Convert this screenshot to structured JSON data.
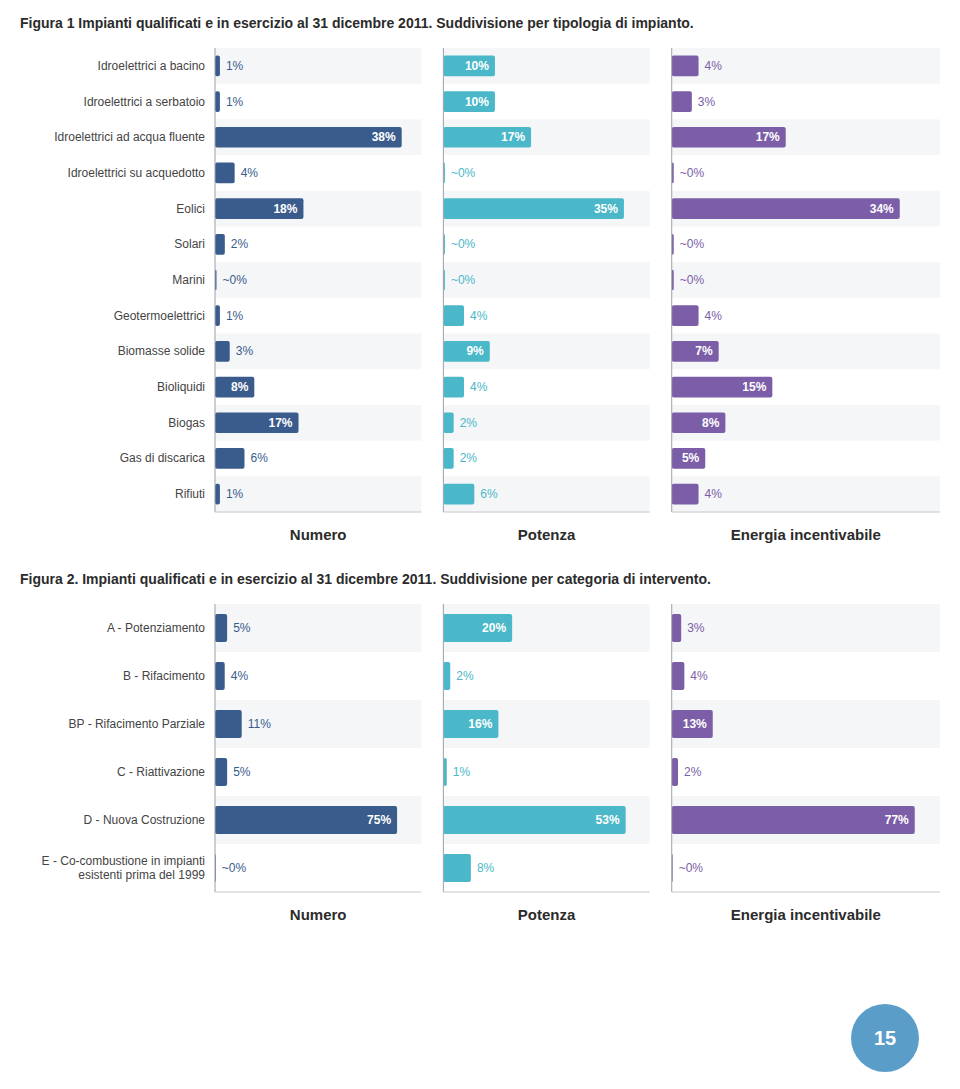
{
  "chart_data": [
    {
      "type": "bar",
      "orientation": "horizontal",
      "title": "Figura 1 Impianti qualificati e in esercizio al 31 dicembre 2011. Suddivisione per tipologia di impianto.",
      "categories": [
        "Idroelettrici a bacino",
        "Idroelettrici a serbatoio",
        "Idroelettrici ad acqua fluente",
        "Idroelettrici su acquedotto",
        "Eolici",
        "Solari",
        "Marini",
        "Geotermoelettrici",
        "Biomasse solide",
        "Bioliquidi",
        "Biogas",
        "Gas di discarica",
        "Rifiuti"
      ],
      "series": [
        {
          "name": "Numero",
          "color": "#3a5c8c",
          "xlim": [
            0,
            42
          ],
          "values": [
            1,
            1,
            38,
            4,
            18,
            2,
            0.3,
            1,
            3,
            8,
            17,
            6,
            1
          ],
          "value_labels": [
            "1%",
            "1%",
            "38%",
            "4%",
            "18%",
            "2%",
            "~0%",
            "1%",
            "3%",
            "8%",
            "17%",
            "6%",
            "1%"
          ]
        },
        {
          "name": "Potenza",
          "color": "#4ab8c8",
          "xlim": [
            0,
            40
          ],
          "values": [
            10,
            10,
            17,
            0.3,
            35,
            0.3,
            0.3,
            4,
            9,
            4,
            2,
            2,
            6
          ],
          "value_labels": [
            "10%",
            "10%",
            "17%",
            "~0%",
            "35%",
            "~0%",
            "~0%",
            "4%",
            "9%",
            "4%",
            "2%",
            "2%",
            "6%"
          ]
        },
        {
          "name": "Energia incentivabile",
          "color": "#7b5ea7",
          "xlim": [
            0,
            40
          ],
          "values": [
            4,
            3,
            17,
            0.3,
            34,
            0.3,
            0.3,
            4,
            7,
            15,
            8,
            5,
            4
          ],
          "value_labels": [
            "4%",
            "3%",
            "17%",
            "~0%",
            "34%",
            "~0%",
            "~0%",
            "4%",
            "7%",
            "15%",
            "8%",
            "5%",
            "4%"
          ]
        }
      ],
      "data_labels": true,
      "tick_labels": "y",
      "grid": false
    },
    {
      "type": "bar",
      "orientation": "horizontal",
      "title": "Figura 2. Impianti qualificati e in esercizio al 31 dicembre 2011. Suddivisione per categoria di intervento.",
      "categories": [
        "A - Potenziamento",
        "B - Rifacimento",
        "BP - Rifacimento Parziale",
        "C - Riattivazione",
        "D - Nuova Costruzione",
        "E - Co-combustione in impianti\nesistenti prima del 1999"
      ],
      "series": [
        {
          "name": "Numero",
          "color": "#3a5c8c",
          "xlim": [
            0,
            85
          ],
          "values": [
            5,
            4,
            11,
            5,
            75,
            0.3
          ],
          "value_labels": [
            "5%",
            "4%",
            "11%",
            "5%",
            "75%",
            "~0%"
          ]
        },
        {
          "name": "Potenza",
          "color": "#4ab8c8",
          "xlim": [
            0,
            60
          ],
          "values": [
            20,
            2,
            16,
            1,
            53,
            8
          ],
          "value_labels": [
            "20%",
            "2%",
            "16%",
            "1%",
            "53%",
            "8%"
          ]
        },
        {
          "name": "Energia incentivabile",
          "color": "#7b5ea7",
          "xlim": [
            0,
            85
          ],
          "values": [
            3,
            4,
            13,
            2,
            77,
            0.3
          ],
          "value_labels": [
            "3%",
            "4%",
            "13%",
            "2%",
            "77%",
            "~0%"
          ]
        }
      ],
      "data_labels": true,
      "tick_labels": "y",
      "grid": false,
      "annotations": [
        {
          "text": "15",
          "color": "#5b9dc9"
        }
      ]
    }
  ]
}
